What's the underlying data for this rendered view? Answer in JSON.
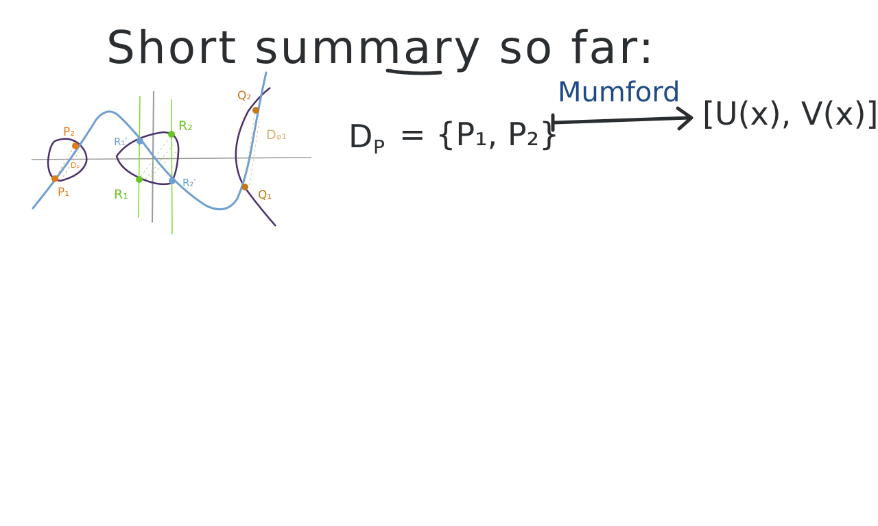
{
  "title": "Short summary so far:",
  "formula": {
    "left": "D",
    "left_sub": "P",
    "set": "= {P₁, P₂}",
    "arrow_label": "Mumford",
    "right": "[U(x), V(x)]"
  },
  "diagram": {
    "labels": {
      "p1": "P₁",
      "p2": "P₂",
      "dp": "Dₚ",
      "r1": "R₁",
      "r2": "R₂",
      "r1p": "R₁′",
      "r2p": "R₂′",
      "q1": "Q₁",
      "q2": "Q₂",
      "dq": "Dᵩ₁"
    },
    "colors": {
      "ink": "#2b2e31",
      "blue_curve": "#6f9fd1",
      "purple_curve": "#4a2f6b",
      "orange": "#e07b1a",
      "green": "#6bc424",
      "brown": "#c07a1c",
      "tan": "#d8b277",
      "mumford_blue": "#1f4a86"
    }
  }
}
